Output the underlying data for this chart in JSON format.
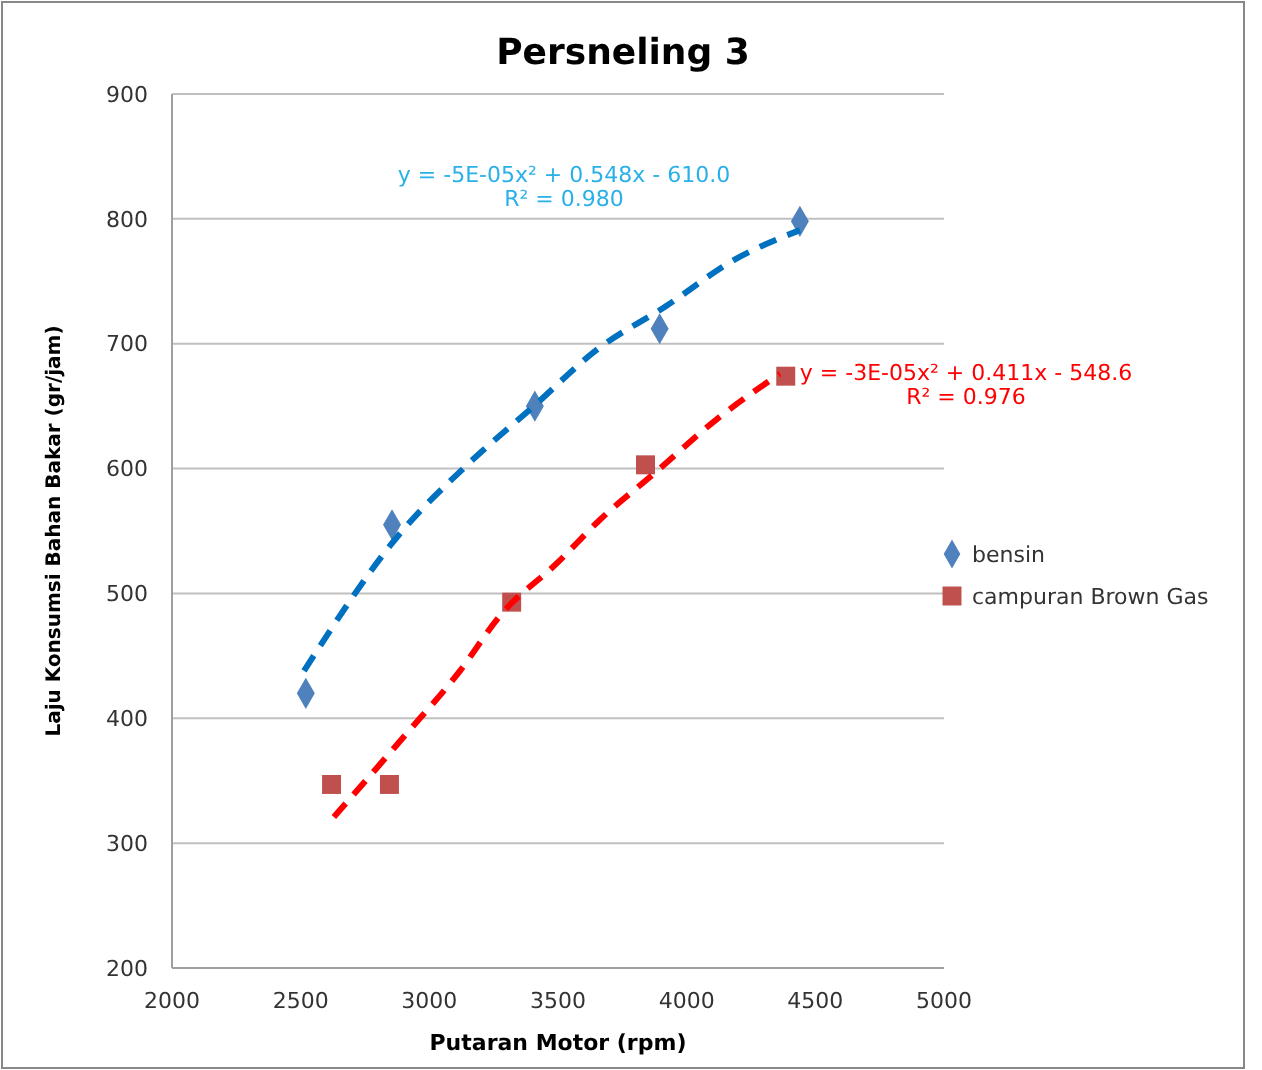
{
  "chart_data": {
    "type": "scatter",
    "title": "Persneling 3",
    "xlabel": "Putaran Motor (rpm)",
    "ylabel": "Laju Konsumsi Bahan Bakar (gr/jam)",
    "xlim": [
      2000,
      5000
    ],
    "xticks": [
      2000,
      2500,
      3000,
      3500,
      4000,
      4500,
      5000
    ],
    "ylim": [
      200,
      900
    ],
    "yticks": [
      200,
      300,
      400,
      500,
      600,
      700,
      800,
      900
    ],
    "grid": "y",
    "legend": "right",
    "series": [
      {
        "name": "bensin",
        "color": "#4f81bd",
        "marker": "diamond",
        "x": [
          2520,
          2855,
          3410,
          3895,
          4440
        ],
        "values": [
          420,
          555,
          650,
          712,
          798
        ]
      },
      {
        "name": "campuran Brown Gas",
        "color": "#c0504d",
        "marker": "square",
        "x": [
          2620,
          2845,
          3320,
          3840,
          4385
        ],
        "values": [
          347,
          347,
          493,
          603,
          674
        ]
      },
      {
        "type": "line",
        "color": "#0070c0",
        "line_style": "dashed",
        "marker": "none",
        "x": [
          2513,
          2886,
          3142,
          3406,
          3650,
          3919,
          4183,
          4440
        ],
        "values": [
          438,
          548,
          602,
          650,
          695,
          730,
          767,
          791
        ]
      },
      {
        "type": "line",
        "color": "#ff0000",
        "line_style": "dashed",
        "marker": "none",
        "x": [
          2629,
          2900,
          3119,
          3274,
          3500,
          3663,
          3873,
          4120,
          4362
        ],
        "values": [
          321,
          385,
          438,
          482,
          525,
          559,
          596,
          640,
          676
        ]
      }
    ],
    "annotations": [
      "y = -5E-05x² + 0.548x - 610.0",
      "R² = 0.980",
      "y = -3E-05x² + 0.411x - 548.6",
      "R² = 0.976"
    ]
  }
}
